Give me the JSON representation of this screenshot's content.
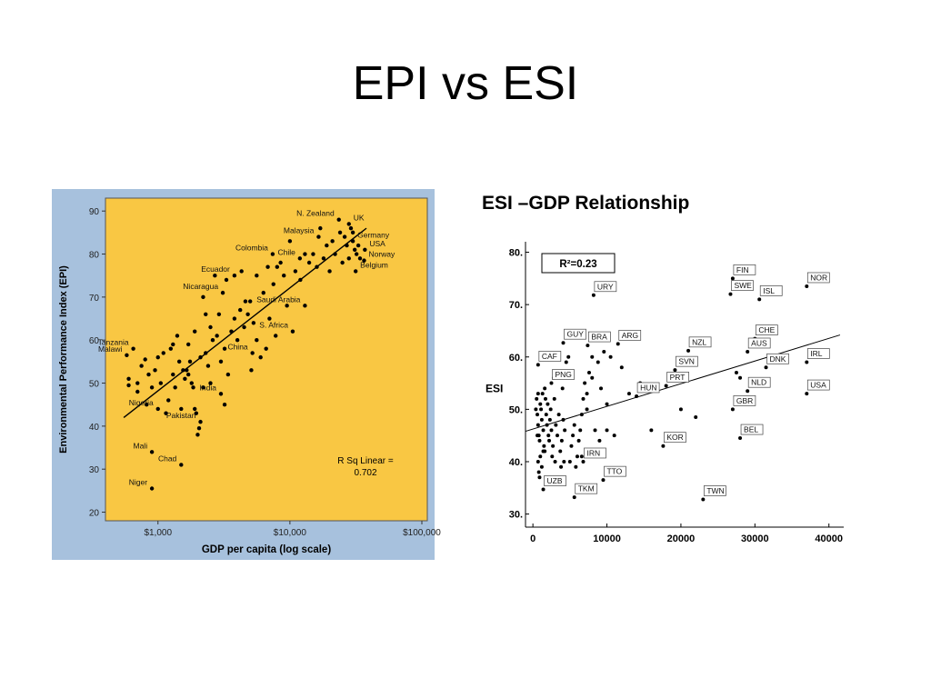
{
  "slide": {
    "title": "EPI  vs ESI"
  },
  "chart_data": [
    {
      "type": "scatter",
      "xlabel": "GDP per capita (log scale)",
      "ylabel": "Environmental Performance Index (EPI)",
      "x_scale": "log",
      "xlim": [
        400,
        110000
      ],
      "ylim": [
        18,
        93
      ],
      "x_ticks": [
        1000,
        10000,
        100000
      ],
      "x_tick_labels": [
        "$1,000",
        "$10,000",
        "$100,000"
      ],
      "y_ticks": [
        20,
        30,
        40,
        50,
        60,
        70,
        80,
        90
      ],
      "y_tick_labels": [
        "20",
        "30",
        "40",
        "50",
        "60",
        "70",
        "80",
        "90"
      ],
      "annotation": "R Sq Linear =\n0.702",
      "colors": {
        "background": "#f9c743",
        "frame": "#a7c1dd",
        "points": "#000000"
      },
      "trendline": [
        [
          550,
          42
        ],
        [
          38000,
          86
        ]
      ],
      "labeled_points": [
        {
          "label": "N. Zealand",
          "x": 23500,
          "y": 88
        },
        {
          "label": "UK",
          "x": 28000,
          "y": 87
        },
        {
          "label": "Malaysia",
          "x": 16500,
          "y": 84
        },
        {
          "label": "Germany",
          "x": 30000,
          "y": 83
        },
        {
          "label": "Colombia",
          "x": 7400,
          "y": 80
        },
        {
          "label": "Chile",
          "x": 11900,
          "y": 79
        },
        {
          "label": "USA",
          "x": 37000,
          "y": 81
        },
        {
          "label": "Norway",
          "x": 36500,
          "y": 78.5
        },
        {
          "label": "Ecuador",
          "x": 3800,
          "y": 75
        },
        {
          "label": "Belgium",
          "x": 31500,
          "y": 76
        },
        {
          "label": "Saudi Arabia",
          "x": 13000,
          "y": 68
        },
        {
          "label": "Nicaragua",
          "x": 3100,
          "y": 71
        },
        {
          "label": "S. Africa",
          "x": 10500,
          "y": 62
        },
        {
          "label": "Tanzania",
          "x": 650,
          "y": 58
        },
        {
          "label": "Malawi",
          "x": 580,
          "y": 56.5
        },
        {
          "label": "China",
          "x": 5200,
          "y": 57
        },
        {
          "label": "India",
          "x": 3000,
          "y": 47.5
        },
        {
          "label": "Nigeria",
          "x": 1000,
          "y": 44
        },
        {
          "label": "Pakistan",
          "x": 2100,
          "y": 41
        },
        {
          "label": "Mali",
          "x": 900,
          "y": 34
        },
        {
          "label": "Chad",
          "x": 1500,
          "y": 31
        },
        {
          "label": "Niger",
          "x": 900,
          "y": 25.5
        }
      ],
      "points": [
        [
          600,
          51
        ],
        [
          600,
          49.5
        ],
        [
          700,
          48
        ],
        [
          700,
          50
        ],
        [
          750,
          54
        ],
        [
          800,
          55.5
        ],
        [
          820,
          45
        ],
        [
          850,
          52
        ],
        [
          900,
          49
        ],
        [
          950,
          53
        ],
        [
          1000,
          56
        ],
        [
          1050,
          50
        ],
        [
          1100,
          57
        ],
        [
          1150,
          43
        ],
        [
          1200,
          46
        ],
        [
          1250,
          58
        ],
        [
          1300,
          52
        ],
        [
          1350,
          49
        ],
        [
          1400,
          61
        ],
        [
          1450,
          55
        ],
        [
          1500,
          44
        ],
        [
          1550,
          53
        ],
        [
          1600,
          51
        ],
        [
          1650,
          53
        ],
        [
          1700,
          52
        ],
        [
          1750,
          55
        ],
        [
          1800,
          50
        ],
        [
          1850,
          49
        ],
        [
          1900,
          44
        ],
        [
          1950,
          43
        ],
        [
          2000,
          38
        ],
        [
          2050,
          39.5
        ],
        [
          2100,
          56
        ],
        [
          2200,
          49
        ],
        [
          2300,
          57
        ],
        [
          2400,
          54
        ],
        [
          2500,
          63
        ],
        [
          2600,
          60
        ],
        [
          2800,
          61
        ],
        [
          3000,
          55
        ],
        [
          3200,
          58
        ],
        [
          3400,
          52
        ],
        [
          3600,
          62
        ],
        [
          3800,
          65
        ],
        [
          4000,
          60
        ],
        [
          4200,
          67
        ],
        [
          4500,
          63
        ],
        [
          4800,
          66
        ],
        [
          5000,
          69
        ],
        [
          5300,
          64
        ],
        [
          5600,
          60
        ],
        [
          6000,
          56
        ],
        [
          6300,
          71
        ],
        [
          6600,
          58
        ],
        [
          7000,
          65
        ],
        [
          7500,
          73
        ],
        [
          8000,
          77
        ],
        [
          8500,
          78
        ],
        [
          9000,
          75
        ],
        [
          9500,
          68
        ],
        [
          10000,
          83
        ],
        [
          11000,
          76
        ],
        [
          12000,
          74
        ],
        [
          13000,
          80
        ],
        [
          14000,
          78
        ],
        [
          15000,
          80
        ],
        [
          16000,
          77
        ],
        [
          17000,
          86
        ],
        [
          18000,
          79
        ],
        [
          19000,
          82
        ],
        [
          20000,
          76
        ],
        [
          21000,
          83
        ],
        [
          22000,
          80
        ],
        [
          24000,
          85
        ],
        [
          25000,
          78
        ],
        [
          26000,
          84
        ],
        [
          27000,
          82
        ],
        [
          28000,
          79
        ],
        [
          29000,
          86
        ],
        [
          30000,
          85
        ],
        [
          31000,
          81
        ],
        [
          32000,
          80
        ],
        [
          33000,
          82
        ],
        [
          34000,
          79
        ],
        [
          2200,
          70
        ],
        [
          2700,
          75
        ],
        [
          3300,
          74
        ],
        [
          4300,
          76
        ],
        [
          5600,
          75
        ],
        [
          6800,
          77
        ],
        [
          1300,
          59
        ],
        [
          1700,
          59
        ],
        [
          2500,
          50
        ],
        [
          3200,
          45
        ],
        [
          2300,
          66
        ],
        [
          2900,
          66
        ],
        [
          4600,
          69
        ],
        [
          5100,
          53
        ],
        [
          7800,
          61
        ],
        [
          1900,
          62
        ]
      ]
    },
    {
      "type": "scatter",
      "title": "ESI –GDP Relationship",
      "xlabel": "",
      "ylabel": "ESI",
      "xlim": [
        -1000,
        42000
      ],
      "ylim": [
        27.5,
        82
      ],
      "x_ticks": [
        0,
        10000,
        20000,
        30000,
        40000
      ],
      "x_tick_labels": [
        "0",
        "10000",
        "20000",
        "30000",
        "40000"
      ],
      "y_ticks": [
        30,
        40,
        50,
        60,
        70,
        80
      ],
      "y_tick_labels": [
        "30.",
        "40.",
        "50.",
        "60.",
        "70.",
        "80."
      ],
      "annotation": "R²=0.23",
      "trendline": [
        [
          -1000,
          45.8
        ],
        [
          41500,
          64.2
        ]
      ],
      "labeled_points": [
        {
          "label": "FIN",
          "x": 27000,
          "y": 75
        },
        {
          "label": "NOR",
          "x": 37000,
          "y": 73.5
        },
        {
          "label": "SWE",
          "x": 26700,
          "y": 72
        },
        {
          "label": "ISL",
          "x": 30600,
          "y": 71
        },
        {
          "label": "URY",
          "x": 8200,
          "y": 71.8
        },
        {
          "label": "CHE",
          "x": 30000,
          "y": 63.5
        },
        {
          "label": "GUY",
          "x": 4100,
          "y": 62.7
        },
        {
          "label": "BRA",
          "x": 7400,
          "y": 62.2
        },
        {
          "label": "ARG",
          "x": 11500,
          "y": 62.5
        },
        {
          "label": "AUS",
          "x": 29000,
          "y": 61
        },
        {
          "label": "NZL",
          "x": 21000,
          "y": 61.2
        },
        {
          "label": "IRL",
          "x": 37000,
          "y": 59
        },
        {
          "label": "CAF",
          "x": 700,
          "y": 58.5
        },
        {
          "label": "DNK",
          "x": 31500,
          "y": 58
        },
        {
          "label": "SVN",
          "x": 19200,
          "y": 57.5
        },
        {
          "label": "PNG",
          "x": 2500,
          "y": 55
        },
        {
          "label": "PRT",
          "x": 18000,
          "y": 54.5
        },
        {
          "label": "NLD",
          "x": 29000,
          "y": 53.5
        },
        {
          "label": "HUN",
          "x": 14000,
          "y": 52.5
        },
        {
          "label": "USA",
          "x": 37000,
          "y": 53
        },
        {
          "label": "GBR",
          "x": 27000,
          "y": 50
        },
        {
          "label": "BEL",
          "x": 28000,
          "y": 44.5
        },
        {
          "label": "KOR",
          "x": 17600,
          "y": 43
        },
        {
          "label": "IRN",
          "x": 6800,
          "y": 40
        },
        {
          "label": "TTO",
          "x": 9500,
          "y": 36.5
        },
        {
          "label": "UZB",
          "x": 1400,
          "y": 34.7
        },
        {
          "label": "TKM",
          "x": 5600,
          "y": 33.2
        },
        {
          "label": "TWN",
          "x": 23000,
          "y": 32.8
        }
      ],
      "points": [
        [
          500,
          52
        ],
        [
          600,
          49
        ],
        [
          700,
          47
        ],
        [
          800,
          45
        ],
        [
          900,
          44
        ],
        [
          1000,
          51
        ],
        [
          1100,
          50
        ],
        [
          1200,
          48
        ],
        [
          1300,
          53
        ],
        [
          1400,
          46
        ],
        [
          1500,
          43
        ],
        [
          1600,
          42
        ],
        [
          1700,
          52
        ],
        [
          1800,
          49
        ],
        [
          1900,
          47
        ],
        [
          2000,
          51
        ],
        [
          2100,
          45
        ],
        [
          2200,
          44
        ],
        [
          2300,
          48
        ],
        [
          2400,
          50
        ],
        [
          2500,
          46
        ],
        [
          2700,
          43
        ],
        [
          2900,
          52
        ],
        [
          3100,
          47
        ],
        [
          3300,
          45
        ],
        [
          3500,
          49
        ],
        [
          3700,
          42
        ],
        [
          3900,
          44
        ],
        [
          4100,
          48
        ],
        [
          4300,
          46
        ],
        [
          4500,
          59
        ],
        [
          4800,
          60
        ],
        [
          5000,
          57
        ],
        [
          5200,
          43
        ],
        [
          5400,
          45
        ],
        [
          5600,
          47
        ],
        [
          5800,
          39
        ],
        [
          6000,
          41
        ],
        [
          6200,
          44
        ],
        [
          6400,
          46
        ],
        [
          6600,
          49
        ],
        [
          6800,
          52
        ],
        [
          7000,
          55
        ],
        [
          7300,
          50
        ],
        [
          7600,
          57
        ],
        [
          8000,
          60
        ],
        [
          8400,
          46
        ],
        [
          8800,
          59
        ],
        [
          9200,
          54
        ],
        [
          9600,
          61
        ],
        [
          10000,
          46
        ],
        [
          10500,
          60
        ],
        [
          11000,
          45
        ],
        [
          12000,
          58
        ],
        [
          13000,
          53
        ],
        [
          14500,
          55
        ],
        [
          16000,
          46
        ],
        [
          18000,
          44
        ],
        [
          20000,
          50
        ],
        [
          22000,
          48.5
        ],
        [
          27500,
          57
        ],
        [
          28000,
          56
        ],
        [
          700,
          40
        ],
        [
          800,
          38
        ],
        [
          900,
          37
        ],
        [
          1000,
          41
        ],
        [
          1200,
          39
        ],
        [
          1400,
          42
        ],
        [
          2600,
          41
        ],
        [
          3000,
          40
        ],
        [
          3800,
          39
        ],
        [
          4200,
          40
        ],
        [
          5000,
          40
        ],
        [
          6600,
          41
        ],
        [
          400,
          50
        ],
        [
          600,
          45
        ],
        [
          700,
          53
        ],
        [
          1600,
          54
        ],
        [
          2800,
          56
        ],
        [
          4000,
          54
        ],
        [
          7300,
          53
        ],
        [
          8000,
          56
        ],
        [
          9000,
          44
        ],
        [
          10000,
          51
        ]
      ]
    }
  ]
}
